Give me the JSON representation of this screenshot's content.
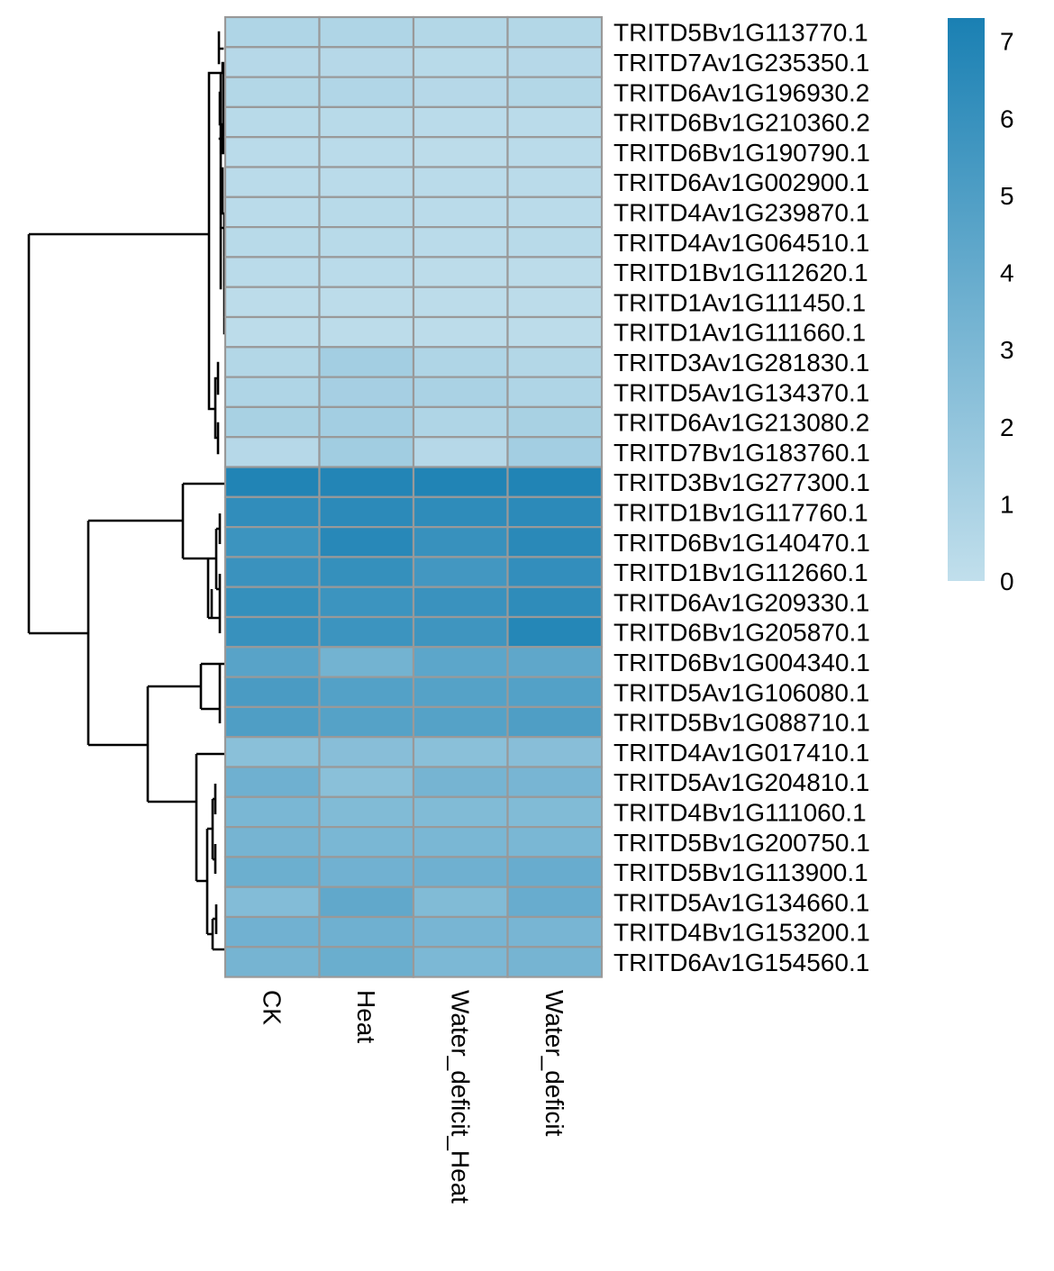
{
  "chart_data": {
    "type": "heatmap",
    "columns": [
      "CK",
      "Heat",
      "Water_deficit_Heat",
      "Water_deficit"
    ],
    "rows": [
      "TRITD5Bv1G113770.1",
      "TRITD7Av1G235350.1",
      "TRITD6Av1G196930.2",
      "TRITD6Bv1G210360.2",
      "TRITD6Bv1G190790.1",
      "TRITD6Av1G002900.1",
      "TRITD4Av1G239870.1",
      "TRITD4Av1G064510.1",
      "TRITD1Bv1G112620.1",
      "TRITD1Av1G111450.1",
      "TRITD1Av1G111660.1",
      "TRITD3Av1G281830.1",
      "TRITD5Av1G134370.1",
      "TRITD6Av1G213080.2",
      "TRITD7Bv1G183760.1",
      "TRITD3Bv1G277300.1",
      "TRITD1Bv1G117760.1",
      "TRITD6Bv1G140470.1",
      "TRITD1Bv1G112660.1",
      "TRITD6Av1G209330.1",
      "TRITD6Bv1G205870.1",
      "TRITD6Bv1G004340.1",
      "TRITD5Av1G106080.1",
      "TRITD5Bv1G088710.1",
      "TRITD4Av1G017410.1",
      "TRITD5Av1G204810.1",
      "TRITD4Bv1G111060.1",
      "TRITD5Bv1G200750.1",
      "TRITD5Bv1G113900.1",
      "TRITD5Av1G134660.1",
      "TRITD4Bv1G153200.1",
      "TRITD6Av1G154560.1"
    ],
    "values": [
      [
        0.8,
        0.8,
        0.6,
        0.6
      ],
      [
        0.5,
        0.5,
        0.4,
        0.5
      ],
      [
        0.6,
        0.7,
        0.5,
        0.6
      ],
      [
        0.4,
        0.4,
        0.3,
        0.3
      ],
      [
        0.3,
        0.3,
        0.2,
        0.3
      ],
      [
        0.3,
        0.3,
        0.3,
        0.3
      ],
      [
        0.3,
        0.4,
        0.3,
        0.3
      ],
      [
        0.4,
        0.4,
        0.3,
        0.4
      ],
      [
        0.3,
        0.3,
        0.2,
        0.2
      ],
      [
        0.2,
        0.2,
        0.2,
        0.2
      ],
      [
        0.2,
        0.2,
        0.2,
        0.2
      ],
      [
        0.6,
        1.3,
        0.8,
        0.6
      ],
      [
        0.8,
        1.2,
        1.0,
        0.8
      ],
      [
        1.1,
        1.3,
        0.8,
        1.1
      ],
      [
        0.5,
        1.4,
        0.5,
        1.3
      ],
      [
        7.0,
        6.9,
        7.0,
        7.0
      ],
      [
        6.3,
        6.5,
        6.4,
        6.5
      ],
      [
        5.8,
        6.7,
        6.0,
        6.6
      ],
      [
        5.9,
        6.1,
        5.5,
        6.2
      ],
      [
        6.1,
        5.8,
        5.9,
        6.4
      ],
      [
        6.0,
        5.8,
        5.7,
        6.8
      ],
      [
        4.6,
        3.4,
        4.4,
        4.3
      ],
      [
        5.2,
        4.8,
        4.7,
        4.8
      ],
      [
        5.0,
        4.7,
        4.7,
        5.0
      ],
      [
        2.4,
        2.5,
        2.4,
        2.5
      ],
      [
        3.6,
        2.4,
        3.3,
        3.2
      ],
      [
        3.1,
        2.8,
        2.8,
        2.8
      ],
      [
        3.3,
        3.1,
        3.1,
        3.1
      ],
      [
        3.7,
        3.5,
        3.6,
        3.9
      ],
      [
        2.7,
        4.2,
        2.8,
        3.9
      ],
      [
        3.5,
        3.6,
        3.2,
        3.2
      ],
      [
        3.3,
        3.8,
        3.0,
        3.3
      ]
    ],
    "legend": {
      "ticks": [
        0,
        1,
        2,
        3,
        4,
        5,
        6,
        7
      ],
      "range": [
        0,
        7.3
      ],
      "color_low": "#c1dfec",
      "color_high": "#1a80b3"
    },
    "cell_border_color": "#999999",
    "dendrogram_color": "#000000"
  }
}
